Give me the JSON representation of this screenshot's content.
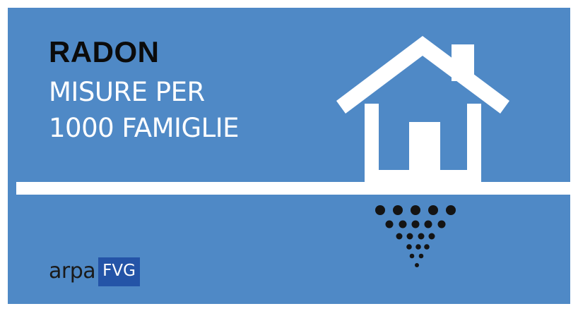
{
  "title": {
    "line1": "RADON",
    "line2": "MISURE PER",
    "line3": "1000 FAMIGLIE"
  },
  "logo": {
    "arpa": "arpa",
    "fvg": "FVG"
  },
  "icons": {
    "house": "house-icon",
    "radon_dots": "radon-dots-icon"
  },
  "colors": {
    "background": "#4f89c6",
    "text_dark": "#0b0b0b",
    "text_light": "#ffffff",
    "logo_box": "#2454a7",
    "dots": "#141414"
  }
}
